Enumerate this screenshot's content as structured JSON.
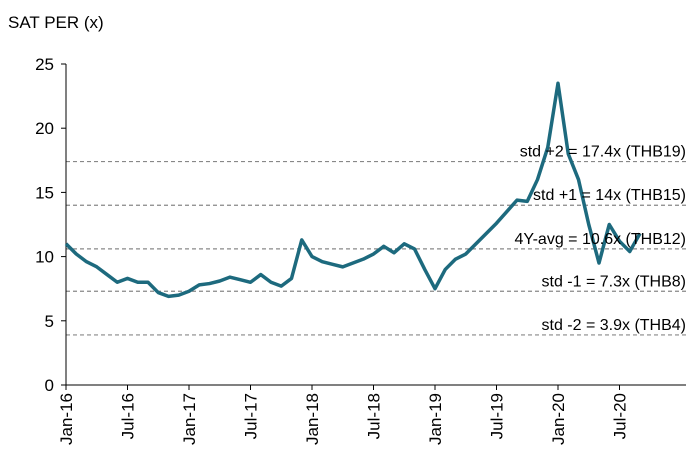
{
  "chart_data": {
    "type": "line",
    "title": "SAT PER  (x)",
    "categories": [
      "Jan-16",
      null,
      null,
      null,
      null,
      null,
      "Jul-16",
      null,
      null,
      null,
      null,
      null,
      "Jan-17",
      null,
      null,
      null,
      null,
      null,
      "Jul-17",
      null,
      null,
      null,
      null,
      null,
      "Jan-18",
      null,
      null,
      null,
      null,
      null,
      "Jul-18",
      null,
      null,
      null,
      null,
      null,
      "Jan-19",
      null,
      null,
      null,
      null,
      null,
      "Jul-19",
      null,
      null,
      null,
      null,
      null,
      "Jan-20",
      null,
      null,
      null,
      null,
      null,
      "Jul-20",
      null,
      null,
      null,
      null,
      null
    ],
    "series": [
      {
        "name": "SAT PER",
        "color": "#1d6a7e",
        "values": [
          11.0,
          10.2,
          9.6,
          9.2,
          8.6,
          8.0,
          8.3,
          8.0,
          8.0,
          7.2,
          6.9,
          7.0,
          7.3,
          7.8,
          7.9,
          8.1,
          8.4,
          8.2,
          8.0,
          8.6,
          8.0,
          7.7,
          8.3,
          11.3,
          10.0,
          9.6,
          9.4,
          9.2,
          9.5,
          9.8,
          10.2,
          10.8,
          10.3,
          11.0,
          10.6,
          9.0,
          7.5,
          9.0,
          9.8,
          10.2,
          11.0,
          11.8,
          12.6,
          13.5,
          14.4,
          14.3,
          16.0,
          18.5,
          23.5,
          18.0,
          16.0,
          12.5,
          9.5,
          12.5,
          11.2,
          10.4,
          11.8,
          null,
          null,
          null
        ]
      }
    ],
    "ylim": [
      0,
      25
    ],
    "yticks": [
      0,
      5,
      10,
      15,
      20,
      25
    ],
    "reference_lines": [
      {
        "value": 17.4,
        "label": "std +2 = 17.4x (THB19)"
      },
      {
        "value": 14,
        "label": "std +1 = 14x (THB15)"
      },
      {
        "value": 10.6,
        "label": "4Y-avg = 10.6x (THB12)"
      },
      {
        "value": 7.3,
        "label": "std -1 = 7.3x (THB8)"
      },
      {
        "value": 3.9,
        "label": "std -2 = 3.9x (THB4)"
      }
    ]
  }
}
